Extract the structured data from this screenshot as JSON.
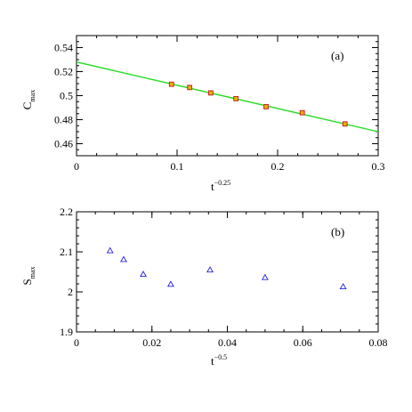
{
  "chart_data": [
    {
      "type": "scatter",
      "panel_label": "(a)",
      "xlabel": {
        "base": "t",
        "sup": "−0.25"
      },
      "ylabel": {
        "base": "C",
        "sub": "max"
      },
      "xlim": [
        0,
        0.3
      ],
      "ylim": [
        0.45,
        0.55
      ],
      "xticks": [
        0,
        0.1,
        0.2,
        0.3
      ],
      "yticks": [
        0.46,
        0.48,
        0.5,
        0.52,
        0.54
      ],
      "xtick_labels": [
        "0",
        "0.1",
        "0.2",
        "0.3"
      ],
      "ytick_labels": [
        "0.46",
        "0.48",
        "0.5",
        "0.52",
        "0.54"
      ],
      "minor_x_step": 0.02,
      "minor_y_step": 0.005,
      "grid": false,
      "series": [
        {
          "marker": "square",
          "color": "#cc2222",
          "fill": "#e8b400",
          "x": [
            0.0945,
            0.1125,
            0.1335,
            0.1585,
            0.1885,
            0.2245,
            0.267
          ],
          "y": [
            0.5095,
            0.5068,
            0.5023,
            0.4975,
            0.4908,
            0.4858,
            0.4765
          ]
        }
      ],
      "fit_line": {
        "color": "#22dd22",
        "x": [
          0,
          0.3
        ],
        "y": [
          0.528,
          0.47
        ]
      }
    },
    {
      "type": "scatter",
      "panel_label": "(b)",
      "xlabel": {
        "base": "t",
        "sup": "−0.5"
      },
      "ylabel": {
        "base": "S",
        "sub": "max"
      },
      "xlim": [
        0,
        0.08
      ],
      "ylim": [
        1.9,
        2.2
      ],
      "xticks": [
        0,
        0.02,
        0.04,
        0.06,
        0.08
      ],
      "yticks": [
        1.9,
        2,
        2.1,
        2.2
      ],
      "xtick_labels": [
        "0",
        "0.02",
        "0.04",
        "0.06",
        "0.08"
      ],
      "ytick_labels": [
        "1.9",
        "2",
        "2.1",
        "2.2"
      ],
      "minor_x_step": 0.005,
      "minor_y_step": 0.02,
      "grid": false,
      "series": [
        {
          "marker": "triangle",
          "color": "#2222dd",
          "x": [
            0.0089,
            0.0125,
            0.0177,
            0.025,
            0.0354,
            0.05,
            0.0707
          ],
          "y": [
            2.103,
            2.081,
            2.044,
            2.019,
            2.055,
            2.036,
            2.013
          ]
        }
      ]
    }
  ]
}
